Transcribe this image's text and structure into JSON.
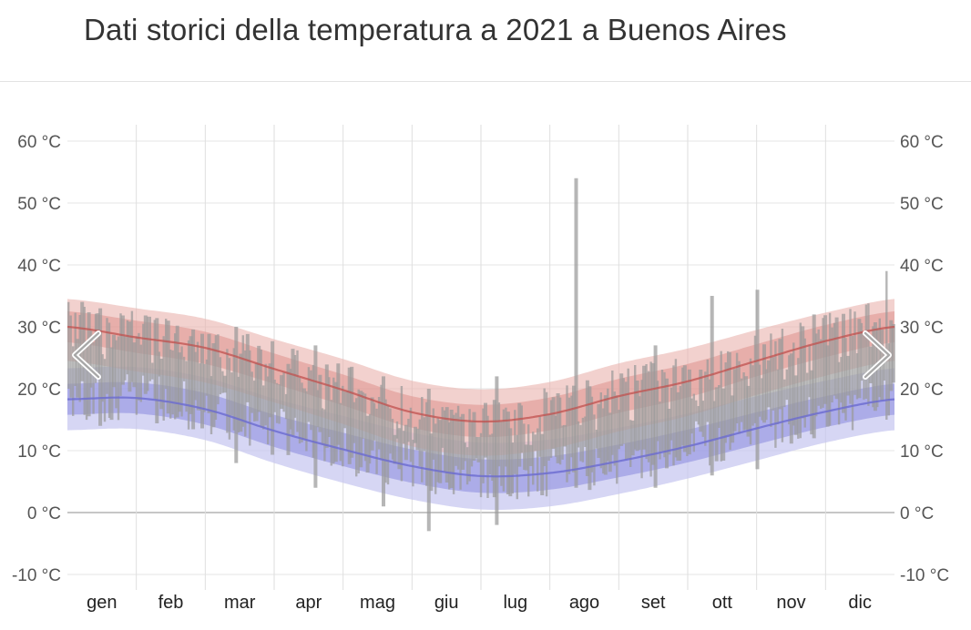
{
  "title": "Dati storici della temperatura a 2021 a Buenos Aires",
  "chart_data": {
    "type": "area",
    "ylim": [
      -10,
      60
    ],
    "y_ticks": [
      -10,
      0,
      10,
      20,
      30,
      40,
      50,
      60
    ],
    "y_tick_labels": [
      "-10 °C",
      "0 °C",
      "10 °C",
      "20 °C",
      "30 °C",
      "40 °C",
      "50 °C",
      "60 °C"
    ],
    "months": [
      "gen",
      "feb",
      "mar",
      "apr",
      "mag",
      "giu",
      "lug",
      "ago",
      "set",
      "ott",
      "nov",
      "dic"
    ],
    "grid": true,
    "legend": "none",
    "colors": {
      "high_line": "#c0504d",
      "high_band_inner": "#d9837e",
      "high_band_outer": "#e9b3ad",
      "low_line": "#6a6ad0",
      "low_band_inner": "#8f8fe0",
      "low_band_outer": "#c4c4f0",
      "daily_bar": "#9a9a9a"
    },
    "series": [
      {
        "x_month": [
          0,
          1,
          2,
          3,
          4,
          5,
          6,
          7,
          8,
          9,
          10,
          11,
          12
        ],
        "avg_high": [
          30,
          28.3,
          26.6,
          23.2,
          19.8,
          16.2,
          14.7,
          15.9,
          18.8,
          21.2,
          24.5,
          27.7,
          30
        ],
        "avg_high_band_inner": [
          [
            27.5,
            32.5
          ],
          [
            25.8,
            31
          ],
          [
            24,
            29.2
          ],
          [
            20.8,
            25.7
          ],
          [
            17.3,
            22.3
          ],
          [
            13.7,
            18.8
          ],
          [
            12.2,
            17.4
          ],
          [
            13.3,
            18.6
          ],
          [
            16.1,
            21.6
          ],
          [
            18.6,
            24
          ],
          [
            22,
            27.2
          ],
          [
            25.1,
            30.3
          ],
          [
            27.5,
            32.5
          ]
        ],
        "avg_high_band_outer": [
          [
            24.5,
            34.5
          ],
          [
            22.8,
            33
          ],
          [
            21,
            31.3
          ],
          [
            17.8,
            28
          ],
          [
            14.3,
            24.8
          ],
          [
            10.7,
            21.3
          ],
          [
            9.2,
            19.9
          ],
          [
            10.3,
            21.1
          ],
          [
            13.1,
            24.1
          ],
          [
            15.6,
            26.5
          ],
          [
            19,
            29.5
          ],
          [
            22.1,
            32.3
          ],
          [
            24.5,
            34.5
          ]
        ],
        "avg_low": [
          18.3,
          18.5,
          16.7,
          13.2,
          10.2,
          7.5,
          5.9,
          6.4,
          8.3,
          10.7,
          13.6,
          16.3,
          18.3
        ],
        "avg_low_band_inner": [
          [
            15.8,
            20.8
          ],
          [
            16,
            21
          ],
          [
            14.2,
            19.3
          ],
          [
            10.6,
            15.8
          ],
          [
            7.5,
            12.9
          ],
          [
            4.8,
            10.2
          ],
          [
            3.2,
            8.6
          ],
          [
            3.7,
            9.1
          ],
          [
            5.7,
            11
          ],
          [
            8.1,
            13.4
          ],
          [
            11,
            16.2
          ],
          [
            13.8,
            18.8
          ],
          [
            15.8,
            20.8
          ]
        ],
        "avg_low_band_outer": [
          [
            13.3,
            23.3
          ],
          [
            13.5,
            23.5
          ],
          [
            11.7,
            21.8
          ],
          [
            8,
            18.4
          ],
          [
            4.8,
            15.6
          ],
          [
            2.1,
            12.9
          ],
          [
            0.5,
            11.3
          ],
          [
            1,
            11.8
          ],
          [
            3,
            13.7
          ],
          [
            5.5,
            16
          ],
          [
            8.4,
            18.8
          ],
          [
            11.3,
            21.3
          ],
          [
            13.3,
            23.3
          ]
        ]
      }
    ],
    "daily_ranges_sample": [
      {
        "day": 1,
        "low": 20,
        "high": 34
      },
      {
        "day": 15,
        "low": 14,
        "high": 33
      },
      {
        "day": 45,
        "low": 16,
        "high": 31
      },
      {
        "day": 75,
        "low": 8,
        "high": 30
      },
      {
        "day": 110,
        "low": 4,
        "high": 27
      },
      {
        "day": 140,
        "low": 1,
        "high": 22
      },
      {
        "day": 160,
        "low": -3,
        "high": 20
      },
      {
        "day": 190,
        "low": -2,
        "high": 22
      },
      {
        "day": 225,
        "low": 4,
        "high": 54
      },
      {
        "day": 260,
        "low": 4,
        "high": 27
      },
      {
        "day": 285,
        "low": 6,
        "high": 35
      },
      {
        "day": 305,
        "low": 7,
        "high": 36
      },
      {
        "day": 330,
        "low": 12,
        "high": 32
      },
      {
        "day": 362,
        "low": 15,
        "high": 39
      }
    ]
  }
}
